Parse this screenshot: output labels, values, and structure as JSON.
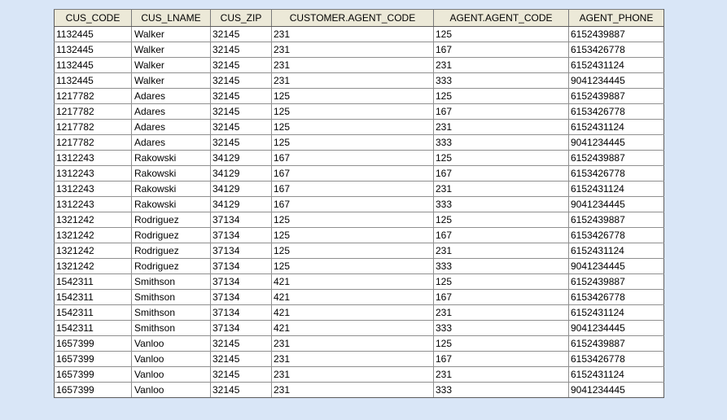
{
  "result_grid": {
    "columns": [
      "CUS_CODE",
      "CUS_LNAME",
      "CUS_ZIP",
      "CUSTOMER.AGENT_CODE",
      "AGENT.AGENT_CODE",
      "AGENT_PHONE"
    ],
    "rows": [
      [
        "1132445",
        "Walker",
        "32145",
        "231",
        "125",
        "6152439887"
      ],
      [
        "1132445",
        "Walker",
        "32145",
        "231",
        "167",
        "6153426778"
      ],
      [
        "1132445",
        "Walker",
        "32145",
        "231",
        "231",
        "6152431124"
      ],
      [
        "1132445",
        "Walker",
        "32145",
        "231",
        "333",
        "9041234445"
      ],
      [
        "1217782",
        "Adares",
        "32145",
        "125",
        "125",
        "6152439887"
      ],
      [
        "1217782",
        "Adares",
        "32145",
        "125",
        "167",
        "6153426778"
      ],
      [
        "1217782",
        "Adares",
        "32145",
        "125",
        "231",
        "6152431124"
      ],
      [
        "1217782",
        "Adares",
        "32145",
        "125",
        "333",
        "9041234445"
      ],
      [
        "1312243",
        "Rakowski",
        "34129",
        "167",
        "125",
        "6152439887"
      ],
      [
        "1312243",
        "Rakowski",
        "34129",
        "167",
        "167",
        "6153426778"
      ],
      [
        "1312243",
        "Rakowski",
        "34129",
        "167",
        "231",
        "6152431124"
      ],
      [
        "1312243",
        "Rakowski",
        "34129",
        "167",
        "333",
        "9041234445"
      ],
      [
        "1321242",
        "Rodriguez",
        "37134",
        "125",
        "125",
        "6152439887"
      ],
      [
        "1321242",
        "Rodriguez",
        "37134",
        "125",
        "167",
        "6153426778"
      ],
      [
        "1321242",
        "Rodriguez",
        "37134",
        "125",
        "231",
        "6152431124"
      ],
      [
        "1321242",
        "Rodriguez",
        "37134",
        "125",
        "333",
        "9041234445"
      ],
      [
        "1542311",
        "Smithson",
        "37134",
        "421",
        "125",
        "6152439887"
      ],
      [
        "1542311",
        "Smithson",
        "37134",
        "421",
        "167",
        "6153426778"
      ],
      [
        "1542311",
        "Smithson",
        "37134",
        "421",
        "231",
        "6152431124"
      ],
      [
        "1542311",
        "Smithson",
        "37134",
        "421",
        "333",
        "9041234445"
      ],
      [
        "1657399",
        "Vanloo",
        "32145",
        "231",
        "125",
        "6152439887"
      ],
      [
        "1657399",
        "Vanloo",
        "32145",
        "231",
        "167",
        "6153426778"
      ],
      [
        "1657399",
        "Vanloo",
        "32145",
        "231",
        "231",
        "6152431124"
      ],
      [
        "1657399",
        "Vanloo",
        "32145",
        "231",
        "333",
        "9041234445"
      ]
    ]
  },
  "colors": {
    "page_background": "#d9e6f7",
    "header_background": "#ece9d8",
    "cell_background": "#ffffff"
  }
}
